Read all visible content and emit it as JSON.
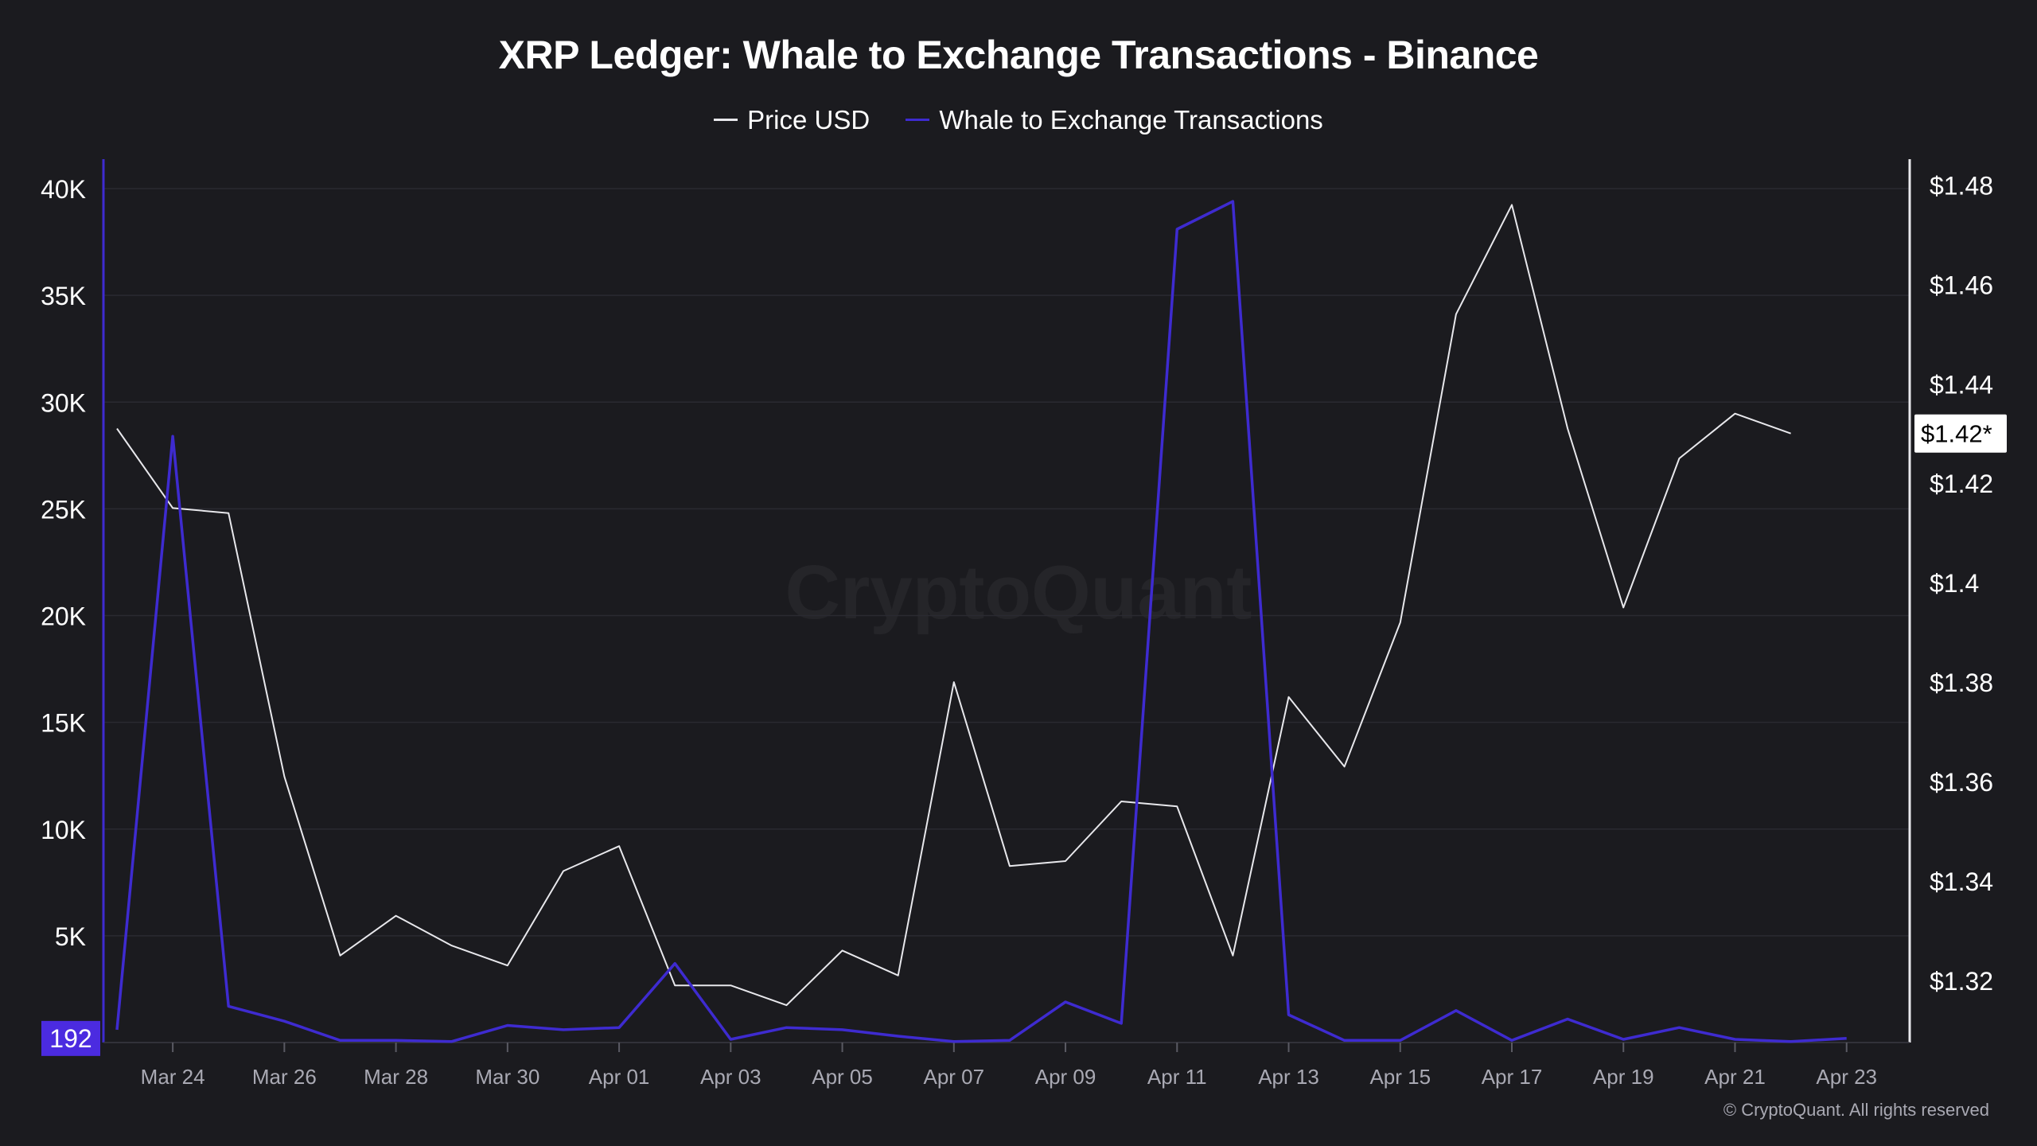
{
  "colors": {
    "background": "#1b1b1f",
    "price_line": "#e8e8ec",
    "whale_line": "#3e2bd0",
    "grid": "#2a2a31",
    "axis_text": "#ffffff",
    "x_tick_text": "#a9a9b3",
    "marker_fill": "#4b2be0"
  },
  "watermark": "CryptoQuant",
  "copyright": "© CryptoQuant. All rights reserved",
  "chart_data": {
    "type": "line",
    "title": "XRP Ledger: Whale to Exchange Transactions - Binance",
    "legend_position": "top-center",
    "grid": true,
    "x": [
      "Mar 23",
      "Mar 24",
      "Mar 25",
      "Mar 26",
      "Mar 27",
      "Mar 28",
      "Mar 29",
      "Mar 30",
      "Mar 31",
      "Apr 01",
      "Apr 02",
      "Apr 03",
      "Apr 04",
      "Apr 05",
      "Apr 06",
      "Apr 07",
      "Apr 08",
      "Apr 09",
      "Apr 10",
      "Apr 11",
      "Apr 12",
      "Apr 13",
      "Apr 14",
      "Apr 15",
      "Apr 16",
      "Apr 17",
      "Apr 18",
      "Apr 19",
      "Apr 20",
      "Apr 21",
      "Apr 22",
      "Apr 23"
    ],
    "x_tick_labels": [
      "Mar 24",
      "Mar 26",
      "Mar 28",
      "Mar 30",
      "Apr 01",
      "Apr 03",
      "Apr 05",
      "Apr 07",
      "Apr 09",
      "Apr 11",
      "Apr 13",
      "Apr 15",
      "Apr 17",
      "Apr 19",
      "Apr 21",
      "Apr 23"
    ],
    "left_axis": {
      "ylim": [
        0,
        40000
      ],
      "ticks": [
        5000,
        10000,
        15000,
        20000,
        25000,
        30000,
        35000,
        40000
      ],
      "tick_labels": [
        "5K",
        "10K",
        "15K",
        "20K",
        "25K",
        "30K",
        "35K",
        "40K"
      ]
    },
    "right_axis": {
      "ylim": [
        1.3075,
        1.4815
      ],
      "ticks": [
        1.32,
        1.34,
        1.36,
        1.38,
        1.4,
        1.42,
        1.44,
        1.46,
        1.48
      ],
      "tick_labels": [
        "$1.32",
        "$1.34",
        "$1.36",
        "$1.38",
        "$1.4",
        "$1.42",
        "$1.44",
        "$1.46",
        "$1.48"
      ]
    },
    "series": [
      {
        "name": "Price USD",
        "axis": "right",
        "values": [
          1.431,
          1.415,
          1.414,
          1.361,
          1.325,
          1.333,
          1.327,
          1.323,
          1.342,
          1.347,
          1.319,
          1.319,
          1.315,
          1.326,
          1.321,
          1.38,
          1.343,
          1.344,
          1.356,
          1.355,
          1.325,
          1.377,
          1.363,
          1.392,
          1.454,
          1.476,
          1.431,
          1.395,
          1.425,
          1.434,
          1.43,
          null
        ]
      },
      {
        "name": "Whale to Exchange Transactions",
        "axis": "left",
        "values": [
          600,
          28400,
          1700,
          1000,
          100,
          100,
          50,
          800,
          600,
          700,
          3700,
          150,
          700,
          600,
          300,
          50,
          100,
          1900,
          900,
          38100,
          39400,
          1300,
          100,
          100,
          1500,
          100,
          1100,
          150,
          700,
          150,
          50,
          192
        ]
      }
    ],
    "annotations": {
      "left_marker_label": "192",
      "right_marker_label": "$1.42*"
    }
  }
}
